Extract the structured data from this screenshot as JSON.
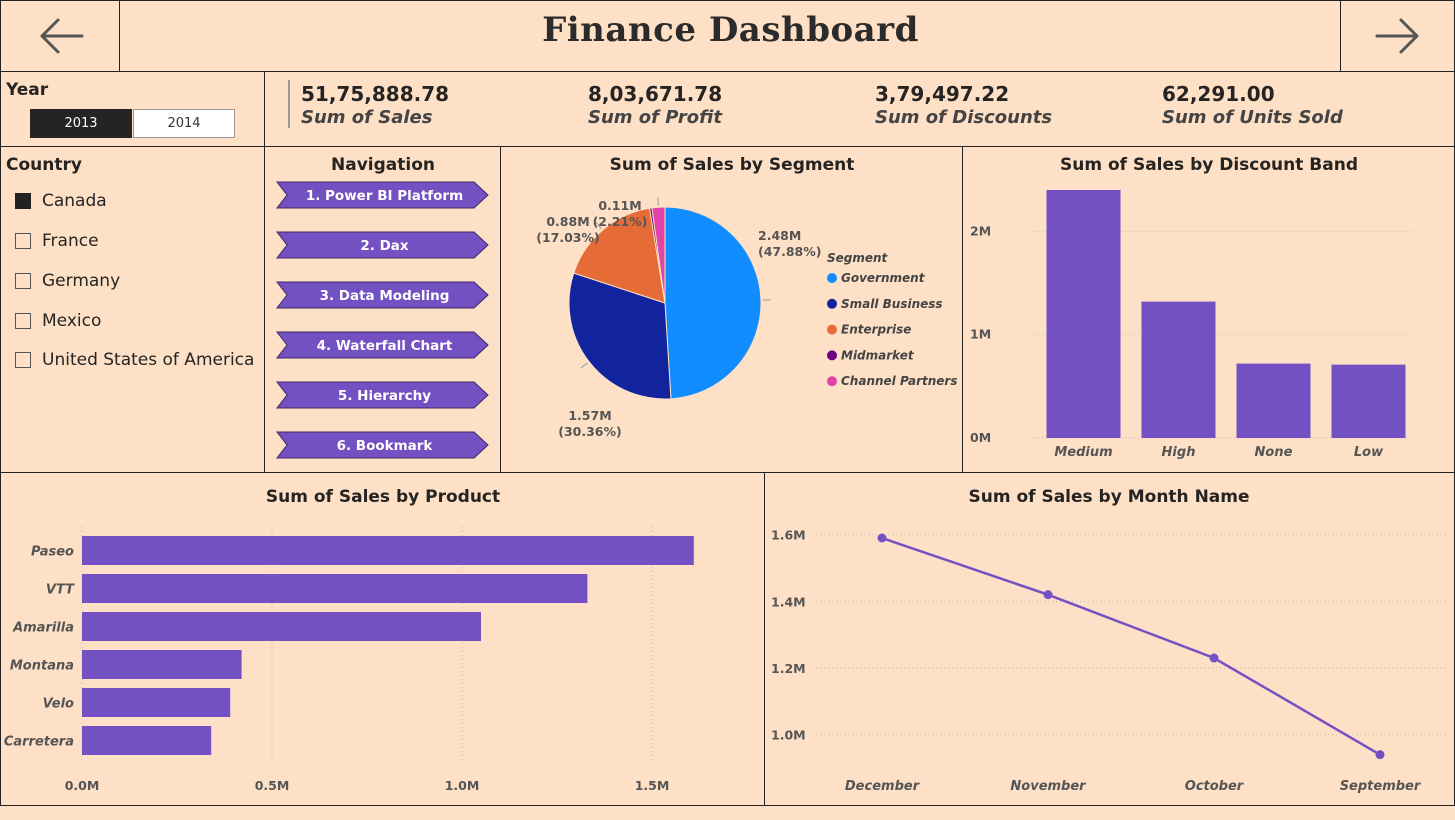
{
  "header": {
    "title": "Finance Dashboard",
    "back_icon": "arrow-left-icon",
    "forward_icon": "arrow-right-icon"
  },
  "year_slicer": {
    "label": "Year",
    "options": [
      "2013",
      "2014"
    ],
    "selected": "2013"
  },
  "kpis": [
    {
      "value": "51,75,888.78",
      "label": "Sum of Sales"
    },
    {
      "value": "8,03,671.78",
      "label": "Sum of Profit"
    },
    {
      "value": "3,79,497.22",
      "label": "Sum of Discounts"
    },
    {
      "value": "62,291.00",
      "label": "Sum of Units Sold"
    }
  ],
  "country_slicer": {
    "label": "Country",
    "items": [
      {
        "label": "Canada",
        "checked": true
      },
      {
        "label": "France",
        "checked": false
      },
      {
        "label": "Germany",
        "checked": false
      },
      {
        "label": "Mexico",
        "checked": false
      },
      {
        "label": "United States of America",
        "checked": false
      }
    ]
  },
  "navigation": {
    "title": "Navigation",
    "items": [
      "1. Power BI Platform",
      "2. Dax",
      "3. Data Modeling",
      "4. Waterfall Chart",
      "5. Hierarchy",
      "6. Bookmark"
    ]
  },
  "colors": {
    "background": "#fde0c6",
    "accent": "#7451c2",
    "government": "#118dff",
    "small_business": "#12239e",
    "enterprise": "#e66c37",
    "midmarket": "#6b007b",
    "channel_partners": "#e044a7"
  },
  "chart_data": [
    {
      "type": "pie",
      "title": "Sum of Sales by Segment",
      "legend_title": "Segment",
      "legend_position": "right",
      "slices": [
        {
          "name": "Government",
          "value": 2.48,
          "label": "2.48M",
          "pct": "(47.88%)"
        },
        {
          "name": "Small Business",
          "value": 1.57,
          "label": "1.57M",
          "pct": "(30.36%)"
        },
        {
          "name": "Enterprise",
          "value": 0.88,
          "label": "0.88M",
          "pct": "(17.03%)"
        },
        {
          "name": "Midmarket",
          "value": 0.02,
          "label": "",
          "pct": ""
        },
        {
          "name": "Channel Partners",
          "value": 0.11,
          "label": "0.11M",
          "pct": "(2.21%)"
        }
      ]
    },
    {
      "type": "bar",
      "title": "Sum of Sales by Discount Band",
      "categories": [
        "Medium",
        "High",
        "None",
        "Low"
      ],
      "values": [
        2.4,
        1.32,
        0.72,
        0.71
      ],
      "ylim": [
        0,
        2.4
      ],
      "yticks": [
        0,
        1,
        2
      ],
      "ytick_labels": [
        "0M",
        "1M",
        "2M"
      ],
      "grid": true
    },
    {
      "type": "bar",
      "orientation": "horizontal",
      "title": "Sum of Sales by Product",
      "categories": [
        "Paseo",
        "VTT",
        "Amarilla",
        "Montana",
        "Velo",
        "Carretera"
      ],
      "values": [
        1.61,
        1.33,
        1.05,
        0.42,
        0.39,
        0.34
      ],
      "xlim": [
        0,
        1.75
      ],
      "xticks": [
        0,
        0.5,
        1.0,
        1.5
      ],
      "xtick_labels": [
        "0.0M",
        "0.5M",
        "1.0M",
        "1.5M"
      ],
      "grid": true
    },
    {
      "type": "line",
      "title": "Sum of Sales by Month Name",
      "x": [
        "December",
        "November",
        "October",
        "September"
      ],
      "y": [
        1.59,
        1.42,
        1.23,
        0.94
      ],
      "ylim": [
        0.9,
        1.65
      ],
      "yticks": [
        1.0,
        1.2,
        1.4,
        1.6
      ],
      "ytick_labels": [
        "1.0M",
        "1.2M",
        "1.4M",
        "1.6M"
      ],
      "grid": true
    }
  ]
}
